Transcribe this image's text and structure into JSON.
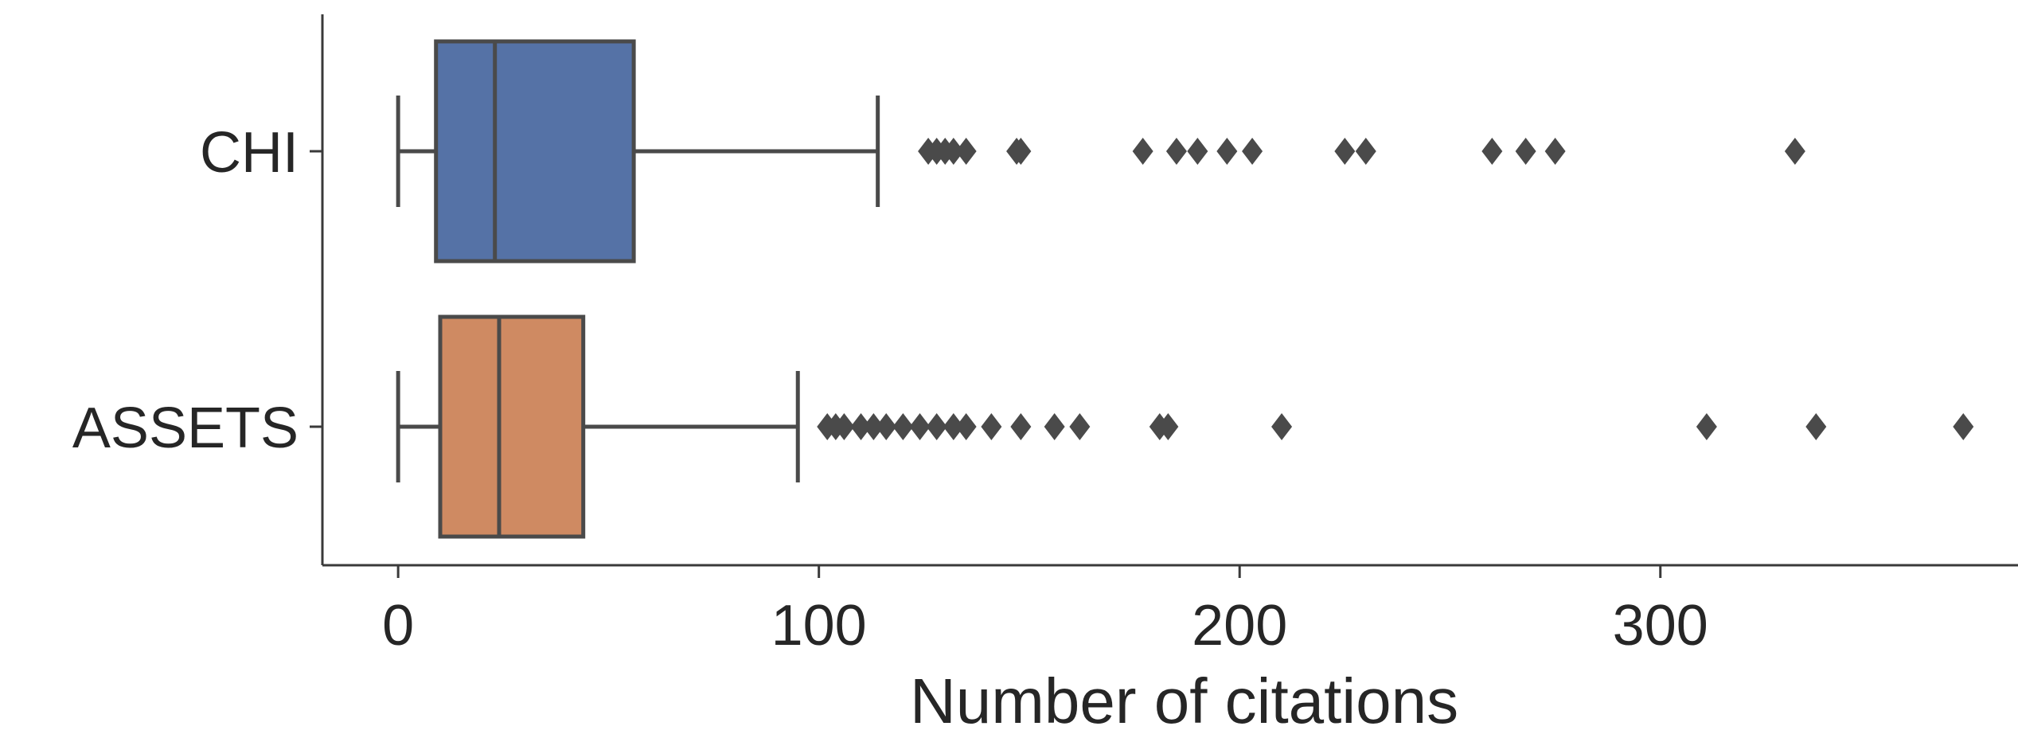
{
  "chart_data": {
    "type": "boxplot",
    "orientation": "horizontal",
    "title": "",
    "xlabel": "Number of citations",
    "ylabel": "",
    "xlim": [
      -18,
      385
    ],
    "x_ticks": [
      0,
      100,
      200,
      300
    ],
    "grid": false,
    "legend": "none",
    "series": [
      {
        "category": "CHI",
        "color": "#5572a6",
        "whisker_low": 0,
        "q1": 9,
        "median": 23,
        "q3": 56,
        "whisker_high": 114,
        "outliers": [
          126,
          128,
          130,
          132,
          135,
          147,
          148,
          177,
          185,
          190,
          197,
          203,
          225,
          230,
          260,
          268,
          275,
          332
        ]
      },
      {
        "category": "ASSETS",
        "color": "#cf8a62",
        "whisker_low": 0,
        "q1": 10,
        "median": 24,
        "q3": 44,
        "whisker_high": 95,
        "outliers": [
          102,
          104,
          106,
          110,
          113,
          116,
          120,
          124,
          128,
          132,
          135,
          141,
          148,
          156,
          162,
          181,
          183,
          210,
          311,
          337,
          372
        ]
      }
    ]
  }
}
